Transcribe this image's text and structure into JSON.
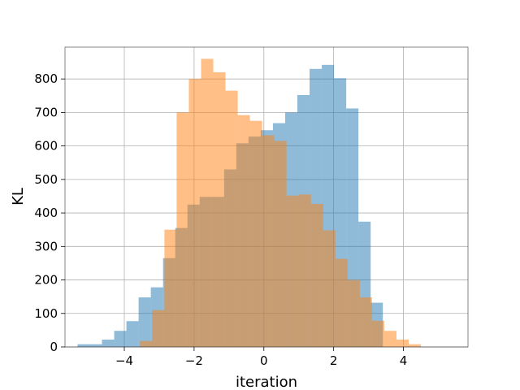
{
  "chart_data": {
    "type": "histogram",
    "xlabel": "iteration",
    "ylabel": "KL",
    "xlim": [
      -5.7,
      5.85
    ],
    "ylim": [
      0,
      895
    ],
    "x_ticks": [
      -4,
      -2,
      0,
      2,
      4
    ],
    "x_tick_labels": [
      "−4",
      "−2",
      "0",
      "2",
      "4"
    ],
    "y_ticks": [
      0,
      100,
      200,
      300,
      400,
      500,
      600,
      700,
      800
    ],
    "y_tick_labels": [
      "0",
      "100",
      "200",
      "300",
      "400",
      "500",
      "600",
      "700",
      "800"
    ],
    "grid": true,
    "series": [
      {
        "color": "#1f77b4",
        "alpha": 0.5,
        "bin_start": -5.34,
        "bin_width": 0.35,
        "values": [
          8,
          8,
          22,
          48,
          77,
          148,
          178,
          265,
          355,
          425,
          448,
          448,
          530,
          608,
          628,
          647,
          668,
          700,
          752,
          830,
          842,
          802,
          712,
          374,
          132
        ]
      },
      {
        "color": "#ff7f0e",
        "alpha": 0.5,
        "bin_start": -3.55,
        "bin_width": 0.35,
        "values": [
          18,
          110,
          350,
          700,
          800,
          860,
          820,
          765,
          692,
          675,
          632,
          615,
          452,
          455,
          427,
          348,
          263,
          200,
          148,
          78,
          48,
          22,
          8
        ]
      }
    ]
  }
}
